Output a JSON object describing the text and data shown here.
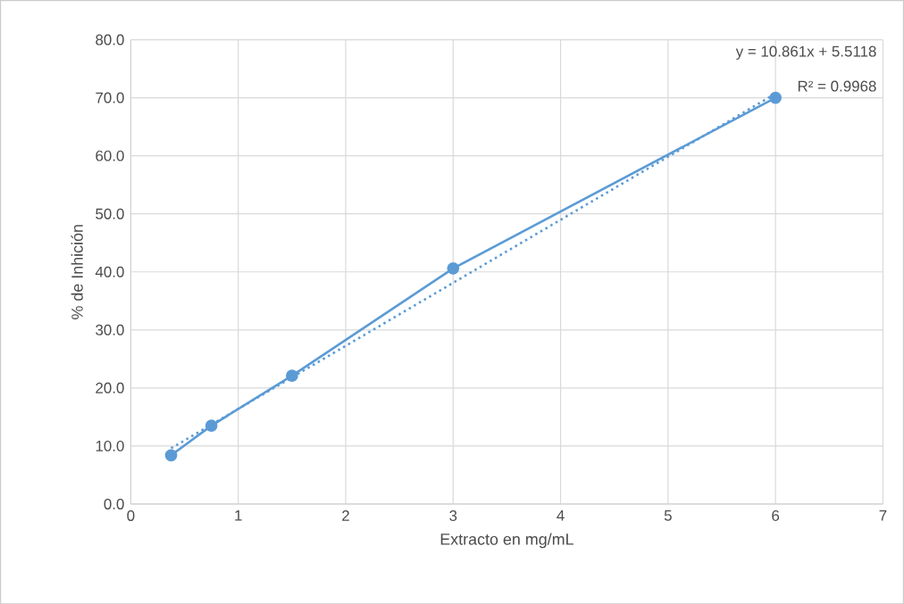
{
  "chart_data": {
    "type": "line",
    "xlabel": "Extracto en mg/mL",
    "ylabel": "% de Inhición",
    "xlim": [
      0,
      7
    ],
    "xticks": [
      0,
      1,
      2,
      3,
      4,
      5,
      6,
      7
    ],
    "ylim": [
      0,
      80
    ],
    "yticks": [
      {
        "value": 0,
        "label": "0.0"
      },
      {
        "value": 10,
        "label": "10.0"
      },
      {
        "value": 20,
        "label": "20.0"
      },
      {
        "value": 30,
        "label": "30.0"
      },
      {
        "value": 40,
        "label": "40.0"
      },
      {
        "value": 50,
        "label": "50.0"
      },
      {
        "value": 60,
        "label": "60.0"
      },
      {
        "value": 70,
        "label": "70.0"
      },
      {
        "value": 80,
        "label": "80.0"
      }
    ],
    "grid": true,
    "marker": "circle",
    "line_style": "solid",
    "series": [
      {
        "color": "#5b9bd5",
        "x": [
          0.375,
          0.75,
          1.5,
          3,
          6
        ],
        "values": [
          8.4,
          13.5,
          22.1,
          40.6,
          70.0
        ]
      },
      {
        "type": "line",
        "color": "#5b9bd5",
        "marker": "none",
        "line_style": "dotted",
        "x": [
          0.375,
          6
        ],
        "values": [
          9.6,
          70.7
        ]
      }
    ],
    "annotations": [
      "y = 10.861x + 5.5118",
      "R² = 0.9968"
    ]
  }
}
